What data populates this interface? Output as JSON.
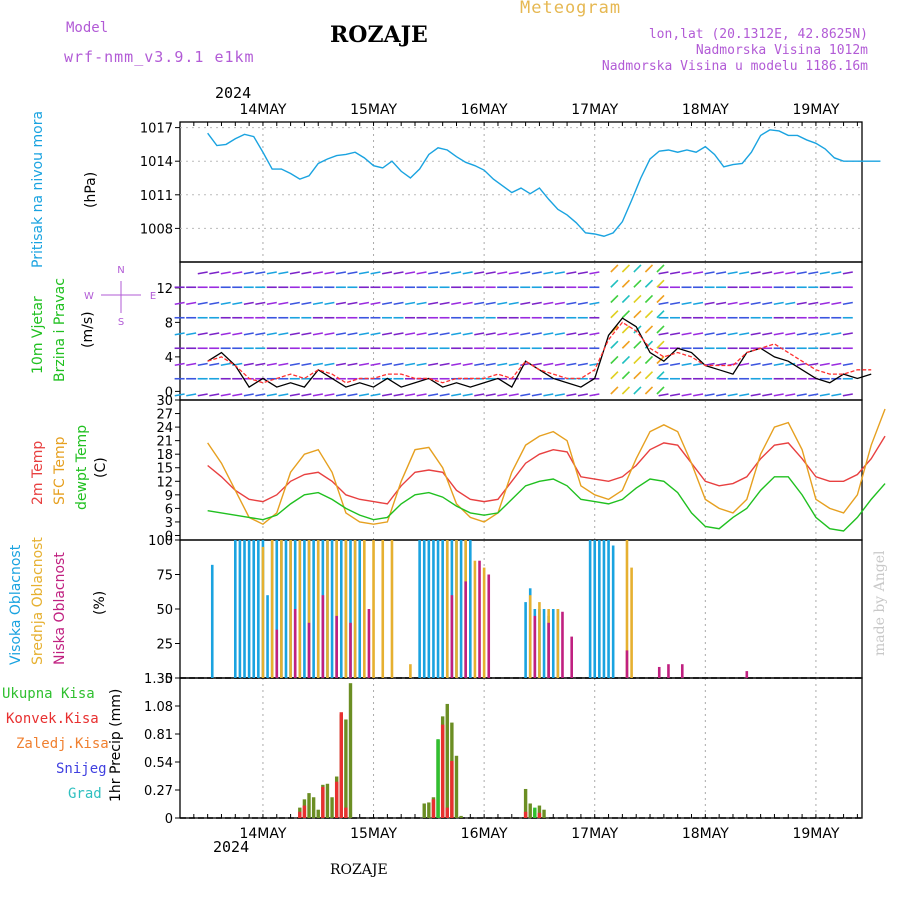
{
  "header": {
    "model_label": "Model",
    "model_name": "wrf-nmm_v3.9.1 e1km",
    "station": "ROZAJE",
    "meteogram_label": "Meteogram",
    "lonlat": "lon,lat (20.1312E, 42.8625N)",
    "elevation": "Nadmorska Visina 1012m",
    "model_elevation": "Nadmorska Visina u modelu 1186.16m",
    "year": "2024"
  },
  "footer": {
    "station": "ROZAJE",
    "year": "2024",
    "watermark": "made by Angel"
  },
  "chart_data": [
    {
      "type": "line",
      "panel": "pressure",
      "ylabel": [
        "Pritisak na nivou mora",
        "(hPa)"
      ],
      "ylim": [
        1005,
        1017.5
      ],
      "yticks": [
        "1008",
        "1011",
        "1014",
        "1017"
      ],
      "x_categories": [
        "14MAY",
        "15MAY",
        "16MAY",
        "17MAY",
        "18MAY",
        "19MAY"
      ],
      "x": [
        0.0,
        2,
        4,
        6,
        8,
        10,
        12,
        14,
        16,
        18,
        20,
        22,
        24,
        26,
        28,
        30,
        32,
        34,
        36,
        38,
        40,
        42,
        44,
        46,
        48,
        50,
        52,
        54,
        56,
        58,
        60,
        62,
        64,
        66,
        68,
        70,
        72,
        74,
        76,
        78,
        80,
        82,
        84,
        86,
        88,
        90,
        92,
        94,
        96,
        98,
        100,
        102,
        104,
        106,
        108,
        110,
        112,
        114,
        116,
        118,
        120,
        122,
        124,
        126,
        128,
        130,
        132,
        134,
        136,
        138,
        140,
        142,
        144,
        146
      ],
      "series": [
        {
          "color": "#1aa3e0",
          "values": [
            1016.5,
            1015.4,
            1015.5,
            1016.0,
            1016.4,
            1016.2,
            1014.8,
            1013.3,
            1013.3,
            1012.9,
            1012.4,
            1012.7,
            1013.8,
            1014.2,
            1014.5,
            1014.6,
            1014.8,
            1014.3,
            1013.6,
            1013.4,
            1014.0,
            1013.1,
            1012.5,
            1013.3,
            1014.6,
            1015.2,
            1015.0,
            1014.4,
            1013.9,
            1013.6,
            1013.2,
            1012.4,
            1011.8,
            1011.2,
            1011.6,
            1011.1,
            1011.6,
            1010.6,
            1009.7,
            1009.2,
            1008.5,
            1007.6,
            1007.5,
            1007.3,
            1007.6,
            1008.6,
            1010.5,
            1012.5,
            1014.2,
            1014.9,
            1015.0,
            1014.8,
            1015.0,
            1014.8,
            1015.3,
            1014.6,
            1013.5,
            1013.7,
            1013.8,
            1014.8,
            1016.3,
            1016.8,
            1016.7,
            1016.3,
            1016.3,
            1015.9,
            1015.6,
            1015.1,
            1014.3,
            1014.0,
            1014.0,
            1014.0,
            1014.0,
            1014.0
          ]
        }
      ]
    },
    {
      "type": "line",
      "panel": "wind",
      "ylabel": [
        "10m Vjetar",
        "Brzina i Pravac",
        "(m/s)"
      ],
      "compass": [
        "N",
        "E",
        "S",
        "W"
      ],
      "ylim": [
        -1,
        15
      ],
      "yticks": [
        "0",
        "4",
        "8",
        "12"
      ],
      "x": [
        0.0,
        3,
        6,
        9,
        12,
        15,
        18,
        21,
        24,
        27,
        30,
        33,
        36,
        39,
        42,
        45,
        48,
        51,
        54,
        57,
        60,
        63,
        66,
        69,
        72,
        75,
        78,
        81,
        84,
        87,
        90,
        93,
        96,
        99,
        102,
        105,
        108,
        111,
        114,
        117,
        120,
        123,
        126,
        129,
        132,
        135,
        138,
        141,
        144
      ],
      "series": [
        {
          "color": "#000000",
          "values": [
            3.5,
            4.5,
            3.0,
            0.5,
            1.5,
            0.5,
            1.0,
            0.5,
            2.5,
            1.5,
            0.5,
            1.0,
            0.5,
            1.5,
            0.5,
            1.0,
            1.5,
            0.5,
            1.0,
            0.5,
            1.0,
            1.5,
            0.5,
            3.5,
            2.5,
            1.5,
            1.0,
            0.5,
            1.5,
            6.5,
            8.5,
            7.5,
            4.5,
            3.5,
            5.0,
            4.5,
            3.0,
            2.5,
            2.0,
            4.5,
            5.0,
            4.0,
            3.5,
            2.5,
            1.5,
            1.0,
            2.0,
            1.5,
            2.0
          ]
        },
        {
          "color": "#ff3030",
          "values": [
            3.5,
            4.0,
            3.0,
            1.5,
            1.0,
            1.5,
            2.0,
            1.5,
            2.5,
            2.0,
            1.0,
            1.5,
            1.5,
            2.0,
            2.0,
            1.5,
            1.5,
            1.0,
            1.5,
            1.5,
            1.5,
            2.0,
            1.5,
            3.5,
            2.5,
            2.0,
            1.5,
            1.5,
            2.5,
            6.0,
            8.0,
            7.0,
            5.0,
            4.0,
            4.5,
            4.0,
            3.0,
            3.0,
            3.0,
            4.5,
            5.0,
            5.5,
            4.5,
            3.5,
            2.5,
            2.0,
            2.0,
            2.5,
            2.5
          ]
        }
      ]
    },
    {
      "type": "line",
      "panel": "temperature",
      "ylabel": [
        "2m Temp",
        "SFC Temp",
        "dewpt Temp",
        "(C)"
      ],
      "ylim": [
        -1,
        30
      ],
      "yticks": [
        "0",
        "3",
        "6",
        "9",
        "12",
        "15",
        "18",
        "21",
        "24",
        "27",
        "30"
      ],
      "x": [
        0.0,
        3,
        6,
        9,
        12,
        15,
        18,
        21,
        24,
        27,
        30,
        33,
        36,
        39,
        42,
        45,
        48,
        51,
        54,
        57,
        60,
        63,
        66,
        69,
        72,
        75,
        78,
        81,
        84,
        87,
        90,
        93,
        96,
        99,
        102,
        105,
        108,
        111,
        114,
        117,
        120,
        123,
        126,
        129,
        132,
        135,
        138,
        141,
        144,
        147
      ],
      "series": [
        {
          "name": "2m Temp",
          "color": "#e84040",
          "values": [
            15.5,
            13,
            10,
            8,
            7.5,
            9,
            12,
            13.5,
            14,
            12,
            9,
            8,
            7.5,
            7,
            11,
            14,
            14.5,
            14,
            10,
            8,
            7.5,
            8,
            12,
            16,
            18,
            19,
            18.5,
            13,
            12.5,
            12,
            13,
            15.5,
            19,
            20.5,
            20,
            16,
            12,
            11,
            11.5,
            13,
            17,
            20,
            20.5,
            17,
            13,
            12,
            12,
            13.5,
            17,
            22
          ]
        },
        {
          "name": "SFC Temp",
          "color": "#e6a020",
          "values": [
            20.5,
            16,
            10,
            4,
            2.5,
            5,
            14,
            18,
            19,
            14,
            5,
            3,
            2.5,
            3,
            12,
            19,
            19.5,
            15,
            7,
            4,
            3,
            5,
            14,
            20,
            22,
            23,
            21,
            11,
            9,
            8,
            10,
            17,
            23,
            24.5,
            23,
            16,
            8,
            6,
            5,
            8,
            18,
            24,
            25,
            19,
            8,
            6,
            5,
            9,
            20,
            28
          ]
        },
        {
          "name": "dewpt Temp",
          "color": "#20c020",
          "values": [
            5.5,
            5,
            4.5,
            4,
            3.5,
            4.5,
            7,
            9,
            9.5,
            8,
            6,
            4.5,
            3.5,
            4,
            7,
            9,
            9.5,
            8.5,
            6.5,
            5,
            4.5,
            5,
            8,
            11,
            12,
            12.5,
            11,
            8,
            7.5,
            7,
            8,
            10.5,
            12.5,
            12,
            9.5,
            5,
            2,
            1.5,
            4,
            6,
            10,
            13,
            13,
            9,
            4,
            1.5,
            1,
            4,
            8,
            11.5
          ]
        }
      ]
    },
    {
      "type": "bar",
      "panel": "clouds",
      "ylabel": [
        "Visoka Oblacnost",
        "Srednja Oblacnost",
        "Niska Oblacnost",
        "(%)"
      ],
      "ylim": [
        0,
        100
      ],
      "yticks": [
        "0",
        "25",
        "50",
        "75",
        "100"
      ],
      "series": [
        {
          "name": "Visoka Oblacnost",
          "color": "#1aa3e0",
          "x": [
            1,
            6,
            7,
            8,
            9,
            10,
            11,
            12,
            13,
            14,
            15,
            16,
            17,
            18,
            19,
            20,
            21,
            22,
            23,
            24,
            25,
            26,
            27,
            28,
            29,
            30,
            31,
            32,
            33,
            46,
            47,
            48,
            49,
            50,
            51,
            52,
            53,
            54,
            55,
            56,
            57,
            69,
            70,
            71,
            72,
            73,
            74,
            75,
            76,
            83,
            84,
            85,
            86,
            87,
            88
          ],
          "values": [
            82,
            100,
            100,
            100,
            100,
            100,
            100,
            100,
            60,
            100,
            100,
            100,
            100,
            100,
            100,
            100,
            100,
            100,
            100,
            100,
            100,
            100,
            100,
            100,
            100,
            100,
            100,
            100,
            100,
            100,
            100,
            100,
            100,
            100,
            100,
            100,
            100,
            100,
            100,
            100,
            100,
            55,
            65,
            50,
            50,
            50,
            45,
            50,
            50,
            100,
            100,
            100,
            100,
            100,
            96
          ]
        },
        {
          "name": "Srednja Oblacnost",
          "color": "#e6b030",
          "x": [
            12,
            14,
            16,
            18,
            20,
            22,
            24,
            26,
            28,
            30,
            32,
            34,
            36,
            38,
            40,
            44,
            52,
            54,
            56,
            58,
            60,
            70,
            72,
            74,
            76,
            91,
            92
          ],
          "values": [
            95,
            100,
            100,
            100,
            100,
            100,
            100,
            100,
            100,
            100,
            100,
            100,
            100,
            100,
            100,
            10,
            100,
            100,
            100,
            85,
            80,
            60,
            55,
            50,
            50,
            100,
            80
          ]
        },
        {
          "name": "Niska Oblacnost",
          "color": "#c02080",
          "x": [
            15,
            19,
            22,
            25,
            28,
            31,
            35,
            53,
            56,
            59,
            61,
            71,
            74,
            77,
            79,
            91,
            98,
            100,
            103,
            117
          ],
          "values": [
            35,
            50,
            40,
            60,
            45,
            40,
            50,
            60,
            70,
            85,
            75,
            45,
            40,
            48,
            30,
            20,
            8,
            10,
            10,
            5
          ]
        }
      ]
    },
    {
      "type": "bar",
      "panel": "precipitation",
      "ylabel": [
        "1hr Precip (mm)"
      ],
      "legend": [
        "Ukupna Kisa",
        "Konvek.Kisa",
        "Zaledj.Kisa",
        "Snijeg",
        "Grad"
      ],
      "legend_colors": [
        "#30c030",
        "#e83030",
        "#f08030",
        "#4040e0",
        "#30c0c0"
      ],
      "ylim": [
        0,
        1.35
      ],
      "yticks": [
        "0",
        "0.27",
        "0.54",
        "0.81",
        "1.08",
        "1.35"
      ],
      "x_categories": [
        "14MAY",
        "15MAY",
        "16MAY",
        "17MAY",
        "18MAY",
        "19MAY"
      ],
      "series": [
        {
          "name": "Ukupna Kisa",
          "color": "#6b8e23",
          "x": [
            20,
            21,
            22,
            23,
            24,
            25,
            26,
            27,
            28,
            29,
            30,
            31,
            47,
            48,
            49,
            50,
            51,
            52,
            53,
            54,
            55,
            56,
            69,
            70,
            71,
            72,
            73
          ],
          "values": [
            0.1,
            0.18,
            0.24,
            0.2,
            0.08,
            0.32,
            0.33,
            0.2,
            0.4,
            1.0,
            0.95,
            1.3,
            0.14,
            0.15,
            0.2,
            0.75,
            0.98,
            1.1,
            0.92,
            0.6,
            0.02,
            0.0,
            0.28,
            0.14,
            0.08,
            0.12,
            0.08
          ]
        },
        {
          "name": "Konvek.Kisa",
          "color": "#e83030",
          "x": [
            20,
            21,
            25,
            28,
            29,
            30,
            49,
            51,
            52,
            53,
            69,
            72
          ],
          "values": [
            0.06,
            0.12,
            0.3,
            0.35,
            1.02,
            0.1,
            0.18,
            0.9,
            0.1,
            0.55,
            0.06,
            0.05
          ]
        },
        {
          "name": "Ukupna Kisa light",
          "color": "#30c030",
          "x": [
            50,
            71
          ],
          "values": [
            0.76,
            0.1
          ]
        }
      ]
    }
  ]
}
